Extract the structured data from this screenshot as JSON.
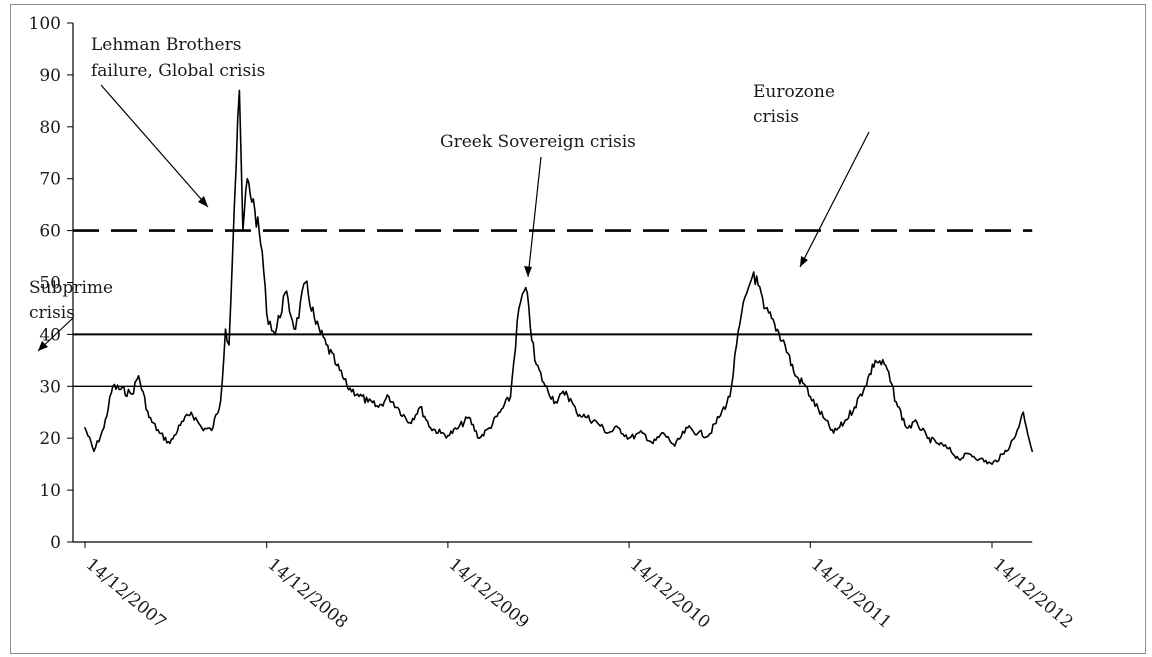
{
  "chart_data": {
    "type": "line",
    "title": "",
    "xlabel": "",
    "ylabel": "",
    "ylim": [
      0,
      100
    ],
    "yticks": [
      0,
      10,
      20,
      30,
      40,
      50,
      60,
      70,
      80,
      90,
      100
    ],
    "x_ticks": [
      "14/12/2007",
      "14/12/2008",
      "14/12/2009",
      "14/12/2010",
      "14/12/2011",
      "14/12/2012"
    ],
    "xlim": [
      "2007-12-14",
      "2013-03-05"
    ],
    "grid": false,
    "legend": "none",
    "reference_lines": [
      {
        "y": 60,
        "style": "dashed"
      },
      {
        "y": 40,
        "style": "solid"
      },
      {
        "y": 30,
        "style": "solid"
      }
    ],
    "annotations": [
      {
        "id": "subprime",
        "lines": [
          "Subprime",
          "crisis"
        ]
      },
      {
        "id": "lehman",
        "lines": [
          "Lehman Brothers",
          "failure, Global  crisis"
        ]
      },
      {
        "id": "greek",
        "lines": [
          "Greek Sovereign crisis"
        ]
      },
      {
        "id": "eurozone",
        "lines": [
          "Eurozone",
          "crisis"
        ]
      }
    ],
    "series": [
      {
        "line_color": "#000000",
        "x": [
          "2007-12-14",
          "2008-01-01",
          "2008-01-21",
          "2008-02-08",
          "2008-03-17",
          "2008-03-31",
          "2008-04-21",
          "2008-05-12",
          "2008-06-02",
          "2008-06-23",
          "2008-07-15",
          "2008-08-05",
          "2008-08-25",
          "2008-09-12",
          "2008-09-22",
          "2008-09-29",
          "2008-10-10",
          "2008-10-20",
          "2008-10-27",
          "2008-11-05",
          "2008-11-20",
          "2008-12-05",
          "2008-12-14",
          "2008-12-31",
          "2009-01-20",
          "2009-02-10",
          "2009-03-02",
          "2009-03-23",
          "2009-04-13",
          "2009-05-04",
          "2009-05-25",
          "2009-06-15",
          "2009-07-06",
          "2009-07-27",
          "2009-08-17",
          "2009-09-07",
          "2009-09-28",
          "2009-10-19",
          "2009-11-09",
          "2009-11-30",
          "2009-12-14",
          "2010-01-04",
          "2010-01-25",
          "2010-02-15",
          "2010-03-08",
          "2010-03-29",
          "2010-04-19",
          "2010-05-06",
          "2010-05-20",
          "2010-06-07",
          "2010-06-28",
          "2010-07-19",
          "2010-08-09",
          "2010-08-30",
          "2010-09-20",
          "2010-10-11",
          "2010-11-01",
          "2010-11-22",
          "2010-12-14",
          "2011-01-10",
          "2011-01-31",
          "2011-02-21",
          "2011-03-16",
          "2011-04-11",
          "2011-05-02",
          "2011-05-23",
          "2011-06-13",
          "2011-07-05",
          "2011-07-25",
          "2011-08-08",
          "2011-08-22",
          "2011-09-12",
          "2011-10-03",
          "2011-10-24",
          "2011-11-14",
          "2011-12-05",
          "2011-12-14",
          "2012-01-09",
          "2012-01-30",
          "2012-02-20",
          "2012-03-12",
          "2012-04-02",
          "2012-04-23",
          "2012-05-14",
          "2012-06-04",
          "2012-06-25",
          "2012-07-16",
          "2012-08-06",
          "2012-08-27",
          "2012-09-17",
          "2012-10-08",
          "2012-10-29",
          "2012-11-19",
          "2012-12-14",
          "2013-01-07",
          "2013-01-28",
          "2013-02-15",
          "2013-03-05"
        ],
        "values": [
          22,
          17.5,
          22,
          30,
          28.5,
          32,
          24,
          21,
          19,
          22.5,
          25,
          22,
          21.5,
          27,
          41,
          38,
          65,
          87,
          60,
          70,
          64,
          56,
          44,
          40,
          48,
          41,
          50,
          42,
          38,
          34,
          30,
          28.5,
          27,
          26,
          28,
          25.5,
          23,
          26,
          22,
          21,
          20.5,
          22,
          24,
          20,
          22,
          25,
          28,
          45,
          49,
          35,
          30,
          27,
          29,
          25,
          24,
          23,
          21,
          22,
          20,
          21,
          19,
          21,
          18.5,
          22,
          21,
          20.5,
          24,
          28,
          42,
          48,
          52,
          45,
          42,
          38,
          32,
          30,
          28,
          24,
          21,
          23,
          26,
          30,
          35,
          34,
          27,
          22,
          23,
          20,
          19,
          18,
          16,
          17,
          16,
          15,
          17,
          20,
          25,
          17.5
        ]
      }
    ]
  }
}
